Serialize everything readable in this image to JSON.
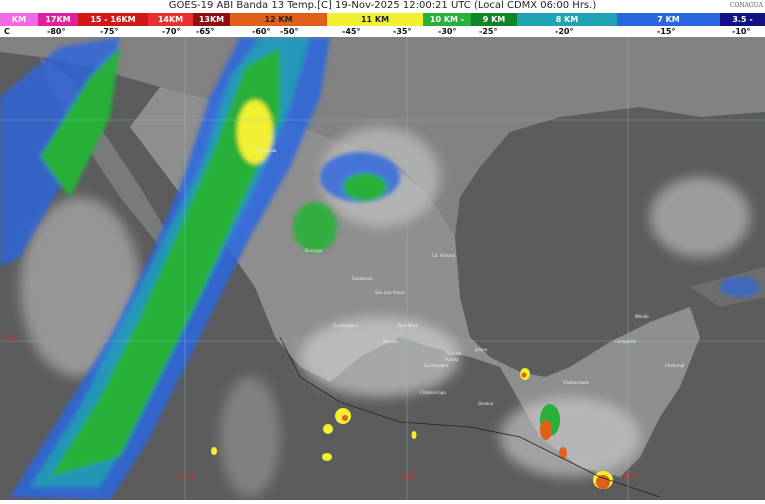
{
  "header": {
    "title": "GOES-19 ABI Banda 13 Temp.[C] 19-Nov-2025 12:00:21 UTC (Local CDMX  06:00 Hrs.)",
    "logo_text": "CONAGUA"
  },
  "legend": [
    {
      "label": "KM",
      "color": "#f46ae6"
    },
    {
      "label": "17KM",
      "color": "#e0209c"
    },
    {
      "label": "15 - 16KM",
      "color": "#d01818"
    },
    {
      "label": "14KM",
      "color": "#e83030"
    },
    {
      "label": "13KM",
      "color": "#8c1010"
    },
    {
      "label": "12 KM",
      "color": "#e0601a"
    },
    {
      "label": "11 KM",
      "color": "#f2f030"
    },
    {
      "label": "10 KM -",
      "color": "#28b038"
    },
    {
      "label": "9 KM",
      "color": "#108428"
    },
    {
      "label": "8 KM",
      "color": "#20a4b4"
    },
    {
      "label": "7 KM",
      "color": "#2a66e0"
    },
    {
      "label": "3.5 -",
      "color": "#121282"
    }
  ],
  "temperature_unit": "C",
  "temperature_ticks": [
    "-80°",
    "-75°",
    "-70°",
    "-65°",
    "-60°",
    "-50°",
    "-45°",
    "-35°",
    "-30°",
    "-25°",
    "-20°",
    "-15°",
    "-10°"
  ],
  "grid_labels": {
    "lat_20": "+20°",
    "lon_110": "-110°",
    "lon_100": "-100°",
    "lon_90": "-90°"
  },
  "cities": [
    "Chihuahua",
    "Durango",
    "Zacatecas",
    "Cd. Victoria",
    "San Luis Potosí",
    "Guadalajara",
    "Querétaro",
    "Morelia",
    "Tlaxcala",
    "Puebla",
    "Cuernavaca",
    "Chilpancingo",
    "Oaxaca",
    "Jalapa",
    "Villahermosa",
    "Campeche",
    "Mérida",
    "Chetumal"
  ]
}
